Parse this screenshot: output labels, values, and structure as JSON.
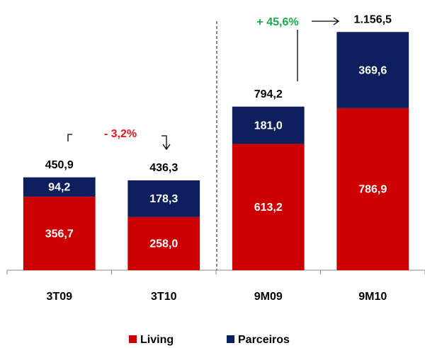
{
  "chart_data": {
    "type": "stacked_bar",
    "categories": [
      "3T09",
      "3T10",
      "9M09",
      "9M10"
    ],
    "series": [
      {
        "name": "Living",
        "color": "#cc0000",
        "values": [
          356.7,
          258.0,
          613.2,
          786.9
        ],
        "value_labels": [
          "356,7",
          "258,0",
          "613,2",
          "786,9"
        ]
      },
      {
        "name": "Parceiros",
        "color": "#0d1f5c",
        "values": [
          94.2,
          178.3,
          181.0,
          369.6
        ],
        "value_labels": [
          "94,2",
          "178,3",
          "181,0",
          "369,6"
        ]
      }
    ],
    "totals": [
      450.9,
      436.3,
      794.2,
      1156.5
    ],
    "total_labels": [
      "450,9",
      "436,3",
      "794,2",
      "1.156,5"
    ],
    "annotations": [
      "- 3,2%",
      "+ 45,6%"
    ],
    "ylim": [
      0,
      1250
    ]
  }
}
